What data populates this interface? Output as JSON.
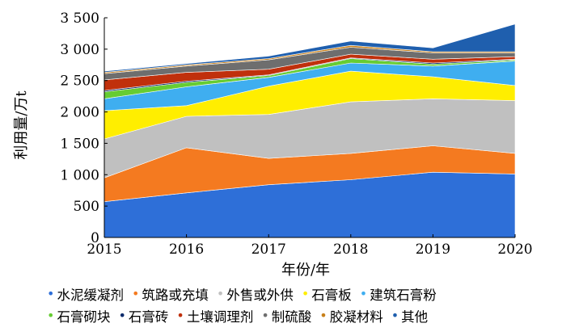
{
  "chart_data": {
    "type": "area",
    "stacked": true,
    "xlabel": "年份/年",
    "ylabel": "利用量/万t",
    "x": [
      "2015",
      "2016",
      "2017",
      "2018",
      "2019",
      "2020"
    ],
    "ylim": [
      0,
      3500
    ],
    "yticks": [
      0,
      500,
      1000,
      1500,
      2000,
      2500,
      3000,
      3500
    ],
    "ytick_labels": [
      "0",
      "500",
      "1 000",
      "1 500",
      "2 000",
      "2 500",
      "3 000",
      "3 500"
    ],
    "grid": false,
    "legend_position": "bottom",
    "series": [
      {
        "name": "水泥缓凝剂",
        "color": "#2e6fd8",
        "values": [
          570,
          710,
          840,
          920,
          1040,
          1010
        ]
      },
      {
        "name": "筑路或充填",
        "color": "#f47a20",
        "values": [
          380,
          720,
          420,
          420,
          420,
          330
        ]
      },
      {
        "name": "外售或外供",
        "color": "#c0c0c0",
        "values": [
          620,
          500,
          700,
          820,
          750,
          840
        ]
      },
      {
        "name": "石膏板",
        "color": "#ffee00",
        "values": [
          450,
          170,
          450,
          490,
          350,
          240
        ]
      },
      {
        "name": "建筑石膏粉",
        "color": "#3faef0",
        "values": [
          190,
          300,
          140,
          130,
          170,
          390
        ]
      },
      {
        "name": "石膏砌块",
        "color": "#66cc33",
        "values": [
          110,
          70,
          30,
          70,
          30,
          20
        ]
      },
      {
        "name": "石膏砖",
        "color": "#0b2b6b",
        "values": [
          20,
          20,
          10,
          10,
          20,
          10
        ]
      },
      {
        "name": "土壤调理剂",
        "color": "#c0300c",
        "values": [
          170,
          140,
          90,
          60,
          60,
          40
        ]
      },
      {
        "name": "制硫酸",
        "color": "#6e6e6e",
        "values": [
          100,
          100,
          150,
          110,
          100,
          60
        ]
      },
      {
        "name": "胶凝材料",
        "color": "#c8801a",
        "values": [
          20,
          20,
          20,
          30,
          20,
          20
        ]
      },
      {
        "name": "其他",
        "color": "#1f5fae",
        "values": [
          20,
          20,
          40,
          70,
          60,
          440
        ]
      }
    ]
  },
  "legend": {
    "marker": "•",
    "rows": [
      [
        0,
        1,
        2,
        3,
        4
      ],
      [
        5,
        6,
        7,
        8,
        9,
        10
      ]
    ]
  }
}
